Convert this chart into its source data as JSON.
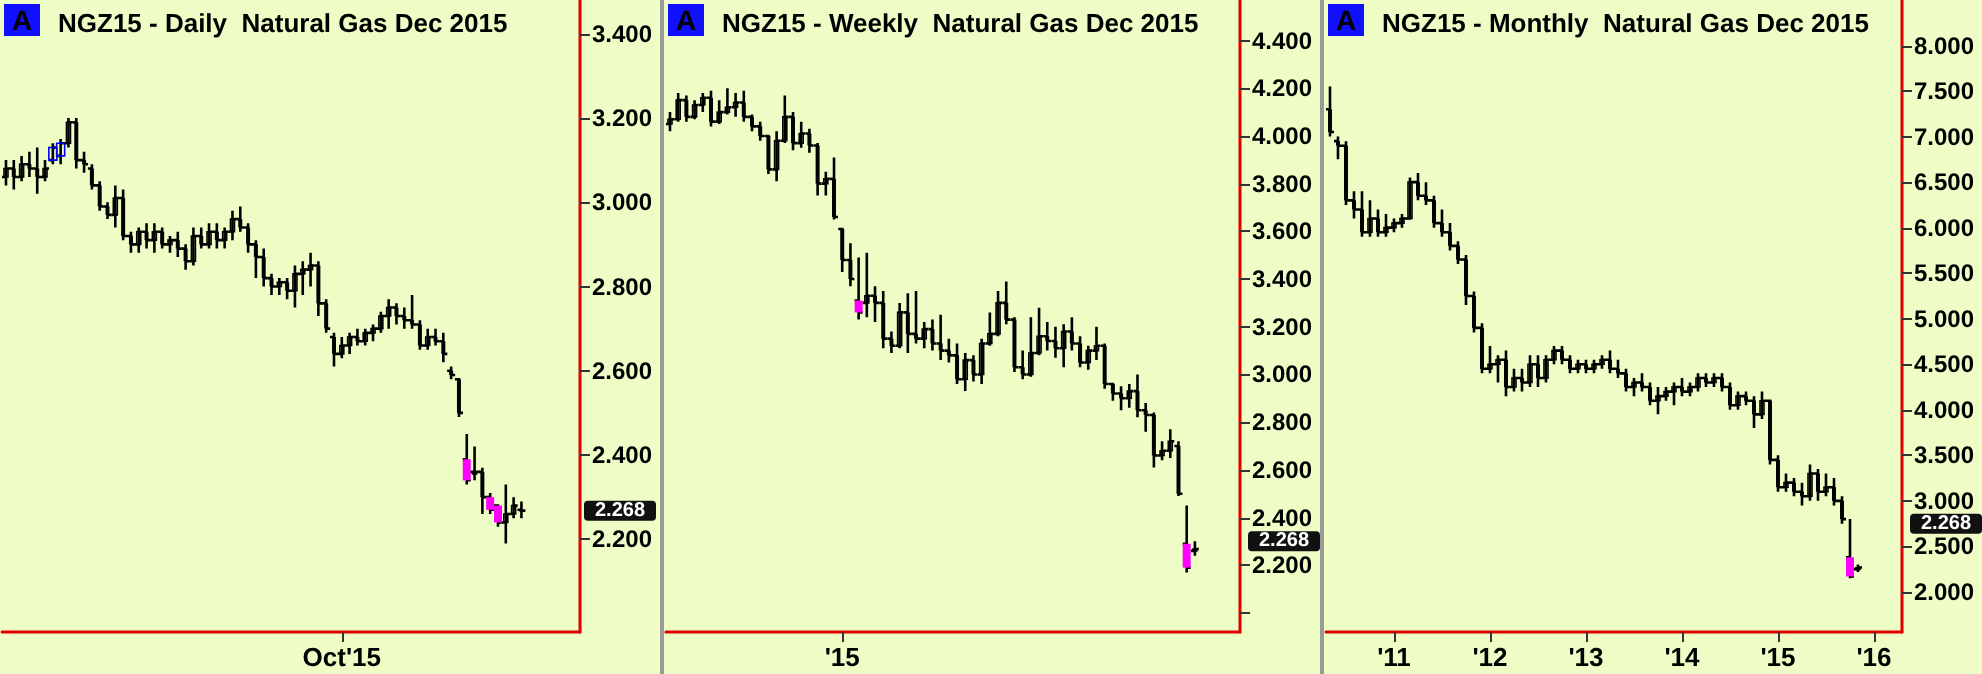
{
  "chart_data": [
    {
      "type": "candlestick",
      "title": "NGZ15 - Daily  Natural Gas Dec 2015",
      "annotations": [
        "A",
        "2.268"
      ],
      "color": "#000000",
      "grid": false,
      "categories": [
        null,
        null,
        null,
        null,
        null,
        null,
        null,
        null,
        null,
        null,
        null,
        null,
        null,
        null,
        null,
        null,
        null,
        null,
        null,
        null,
        null,
        null,
        null,
        null,
        null,
        null,
        null,
        null,
        null,
        null,
        null,
        null,
        null,
        null,
        null,
        null,
        null,
        null,
        null,
        null,
        null,
        null,
        null,
        "Oct'15",
        null,
        null,
        null,
        null,
        null,
        null,
        null,
        null,
        null,
        null,
        null,
        null,
        null,
        null,
        null,
        null,
        null,
        null,
        null,
        null,
        null,
        null,
        null,
        null,
        null,
        null,
        null,
        null,
        null,
        null
      ],
      "ylim": [
        1.98,
        3.48
      ],
      "yticks": [
        {
          "value": 2.2,
          "label": "2.200"
        },
        {
          "value": 2.4,
          "label": "2.400"
        },
        {
          "value": 2.6,
          "label": "2.600"
        },
        {
          "value": 2.8,
          "label": "2.800"
        },
        {
          "value": 3.0,
          "label": "3.000"
        },
        {
          "value": 3.2,
          "label": "3.200"
        },
        {
          "value": 3.4,
          "label": "3.400"
        }
      ],
      "ohlc": [
        [
          3.06,
          3.1,
          3.04,
          3.08
        ],
        [
          3.08,
          3.1,
          3.03,
          3.06
        ],
        [
          3.06,
          3.11,
          3.05,
          3.09
        ],
        [
          3.09,
          3.12,
          3.06,
          3.08
        ],
        [
          3.08,
          3.13,
          3.02,
          3.06
        ],
        [
          3.06,
          3.1,
          3.05,
          3.08
        ],
        [
          3.1,
          3.14,
          3.09,
          3.13
        ],
        [
          3.11,
          3.15,
          3.09,
          3.14
        ],
        [
          3.14,
          3.2,
          3.13,
          3.19
        ],
        [
          3.19,
          3.2,
          3.08,
          3.1
        ],
        [
          3.1,
          3.12,
          3.07,
          3.09
        ],
        [
          3.08,
          3.09,
          3.03,
          3.04
        ],
        [
          3.04,
          3.05,
          2.98,
          2.99
        ],
        [
          2.99,
          3.0,
          2.96,
          2.97
        ],
        [
          2.97,
          3.04,
          2.94,
          3.01
        ],
        [
          3.01,
          3.03,
          2.91,
          2.92
        ],
        [
          2.92,
          2.93,
          2.88,
          2.9
        ],
        [
          2.9,
          2.94,
          2.88,
          2.93
        ],
        [
          2.93,
          2.95,
          2.89,
          2.91
        ],
        [
          2.91,
          2.95,
          2.88,
          2.93
        ],
        [
          2.93,
          2.94,
          2.89,
          2.9
        ],
        [
          2.9,
          2.92,
          2.88,
          2.91
        ],
        [
          2.91,
          2.93,
          2.87,
          2.89
        ],
        [
          2.89,
          2.9,
          2.84,
          2.86
        ],
        [
          2.86,
          2.94,
          2.85,
          2.92
        ],
        [
          2.92,
          2.94,
          2.89,
          2.9
        ],
        [
          2.9,
          2.95,
          2.89,
          2.93
        ],
        [
          2.93,
          2.95,
          2.89,
          2.91
        ],
        [
          2.91,
          2.94,
          2.89,
          2.93
        ],
        [
          2.93,
          2.98,
          2.91,
          2.96
        ],
        [
          2.96,
          2.99,
          2.93,
          2.94
        ],
        [
          2.94,
          2.95,
          2.88,
          2.9
        ],
        [
          2.9,
          2.91,
          2.82,
          2.87
        ],
        [
          2.87,
          2.89,
          2.8,
          2.82
        ],
        [
          2.82,
          2.83,
          2.78,
          2.8
        ],
        [
          2.8,
          2.82,
          2.78,
          2.81
        ],
        [
          2.81,
          2.82,
          2.77,
          2.79
        ],
        [
          2.79,
          2.85,
          2.75,
          2.83
        ],
        [
          2.83,
          2.86,
          2.78,
          2.84
        ],
        [
          2.84,
          2.88,
          2.8,
          2.85
        ],
        [
          2.85,
          2.86,
          2.73,
          2.76
        ],
        [
          2.76,
          2.77,
          2.69,
          2.7
        ],
        [
          2.68,
          2.69,
          2.61,
          2.64
        ],
        [
          2.64,
          2.68,
          2.63,
          2.66
        ],
        [
          2.66,
          2.69,
          2.64,
          2.68
        ],
        [
          2.68,
          2.7,
          2.66,
          2.67
        ],
        [
          2.67,
          2.7,
          2.66,
          2.69
        ],
        [
          2.69,
          2.71,
          2.67,
          2.7
        ],
        [
          2.7,
          2.74,
          2.69,
          2.73
        ],
        [
          2.73,
          2.77,
          2.7,
          2.75
        ],
        [
          2.75,
          2.76,
          2.71,
          2.73
        ],
        [
          2.73,
          2.75,
          2.7,
          2.72
        ],
        [
          2.72,
          2.78,
          2.7,
          2.71
        ],
        [
          2.71,
          2.72,
          2.65,
          2.66
        ],
        [
          2.66,
          2.7,
          2.65,
          2.68
        ],
        [
          2.68,
          2.7,
          2.66,
          2.67
        ],
        [
          2.67,
          2.69,
          2.62,
          2.64
        ],
        [
          2.6,
          2.61,
          2.58,
          2.59
        ],
        [
          2.58,
          2.58,
          2.49,
          2.5
        ],
        [
          2.39,
          2.45,
          2.33,
          2.34
        ],
        [
          2.36,
          2.42,
          2.34,
          2.36
        ],
        [
          2.36,
          2.37,
          2.26,
          2.3
        ],
        [
          2.3,
          2.31,
          2.26,
          2.27
        ],
        [
          2.28,
          2.28,
          2.23,
          2.24
        ],
        [
          2.24,
          2.33,
          2.19,
          2.26
        ],
        [
          2.26,
          2.3,
          2.25,
          2.28
        ],
        [
          2.27,
          2.29,
          2.25,
          2.268
        ],
        null,
        null,
        null,
        null,
        null,
        null,
        null
      ],
      "colors": [
        "#000000",
        "#000000",
        "#000000",
        "#000000",
        "#000000",
        "#000000",
        "#0000ff",
        "#0000ff",
        "#000000",
        "#000000",
        "#000000",
        "#000000",
        "#000000",
        "#000000",
        "#000000",
        "#000000",
        "#000000",
        "#000000",
        "#000000",
        "#000000",
        "#000000",
        "#000000",
        "#000000",
        "#000000",
        "#000000",
        "#000000",
        "#000000",
        "#000000",
        "#000000",
        "#000000",
        "#000000",
        "#000000",
        "#000000",
        "#000000",
        "#000000",
        "#000000",
        "#000000",
        "#000000",
        "#000000",
        "#000000",
        "#000000",
        "#000000",
        "#000000",
        "#000000",
        "#000000",
        "#000000",
        "#000000",
        "#000000",
        "#000000",
        "#000000",
        "#000000",
        "#000000",
        "#000000",
        "#000000",
        "#000000",
        "#000000",
        "#000000",
        "#000000",
        "#000000",
        "#ff00ff",
        "#000000",
        "#000000",
        "#ff00ff",
        "#ff00ff",
        "#000000",
        "#000000",
        "#000000",
        null,
        null,
        null,
        null,
        null,
        null,
        null
      ]
    },
    {
      "type": "candlestick",
      "title": "NGZ15 - Weekly  Natural Gas Dec 2015",
      "annotations": [
        "A",
        "2.268"
      ],
      "color": "#000000",
      "grid": false,
      "categories": [
        null,
        null,
        null,
        null,
        null,
        null,
        null,
        null,
        null,
        null,
        null,
        null,
        null,
        null,
        null,
        null,
        null,
        null,
        null,
        null,
        null,
        "'15",
        null,
        null,
        null,
        null,
        null,
        null,
        null,
        null,
        null,
        null,
        null,
        null,
        null,
        null,
        null,
        null,
        null,
        null,
        null,
        null,
        null,
        null,
        null,
        null,
        null,
        null,
        null,
        null,
        null,
        null,
        null,
        null,
        null,
        null,
        null,
        null,
        null,
        null,
        null,
        null,
        null,
        null,
        null,
        null,
        null,
        null,
        null,
        null
      ],
      "ylim": [
        1.92,
        4.57
      ],
      "yticks": [
        {
          "value": 2.0,
          "label": null
        },
        {
          "value": 2.2,
          "label": "2.200"
        },
        {
          "value": 2.4,
          "label": "2.400"
        },
        {
          "value": 2.6,
          "label": "2.600"
        },
        {
          "value": 2.8,
          "label": "2.800"
        },
        {
          "value": 3.0,
          "label": "3.000"
        },
        {
          "value": 3.2,
          "label": "3.200"
        },
        {
          "value": 3.4,
          "label": "3.400"
        },
        {
          "value": 3.6,
          "label": "3.600"
        },
        {
          "value": 3.8,
          "label": "3.800"
        },
        {
          "value": 4.0,
          "label": "4.000"
        },
        {
          "value": 4.2,
          "label": "4.200"
        },
        {
          "value": 4.4,
          "label": "4.400"
        }
      ],
      "ohlc": [
        [
          4.05,
          4.1,
          4.02,
          4.07
        ],
        [
          4.07,
          4.18,
          4.06,
          4.15
        ],
        [
          4.15,
          4.17,
          4.06,
          4.08
        ],
        [
          4.08,
          4.15,
          4.07,
          4.13
        ],
        [
          4.13,
          4.18,
          4.1,
          4.16
        ],
        [
          4.16,
          4.19,
          4.04,
          4.06
        ],
        [
          4.06,
          4.15,
          4.05,
          4.1
        ],
        [
          4.1,
          4.2,
          4.09,
          4.12
        ],
        [
          4.12,
          4.18,
          4.08,
          4.14
        ],
        [
          4.14,
          4.19,
          4.06,
          4.08
        ],
        [
          4.08,
          4.09,
          4.02,
          4.04
        ],
        [
          4.04,
          4.06,
          3.98,
          4.0
        ],
        [
          4.0,
          4.0,
          3.84,
          3.86
        ],
        [
          3.86,
          4.02,
          3.81,
          3.98
        ],
        [
          3.98,
          4.17,
          3.97,
          4.08
        ],
        [
          4.08,
          4.1,
          3.94,
          3.97
        ],
        [
          3.97,
          4.06,
          3.95,
          4.01
        ],
        [
          4.01,
          4.03,
          3.93,
          3.96
        ],
        [
          3.96,
          3.97,
          3.75,
          3.8
        ],
        [
          3.8,
          3.85,
          3.75,
          3.82
        ],
        [
          3.82,
          3.91,
          3.65,
          3.66
        ],
        [
          3.61,
          3.61,
          3.43,
          3.48
        ],
        [
          3.48,
          3.55,
          3.37,
          3.4
        ],
        [
          3.31,
          3.49,
          3.23,
          3.26
        ],
        [
          3.3,
          3.51,
          3.24,
          3.33
        ],
        [
          3.33,
          3.37,
          3.22,
          3.3
        ],
        [
          3.3,
          3.35,
          3.11,
          3.15
        ],
        [
          3.15,
          3.18,
          3.09,
          3.12
        ],
        [
          3.12,
          3.3,
          3.11,
          3.26
        ],
        [
          3.26,
          3.34,
          3.09,
          3.17
        ],
        [
          3.17,
          3.35,
          3.13,
          3.15
        ],
        [
          3.15,
          3.22,
          3.11,
          3.19
        ],
        [
          3.19,
          3.23,
          3.1,
          3.13
        ],
        [
          3.13,
          3.25,
          3.06,
          3.1
        ],
        [
          3.1,
          3.15,
          3.05,
          3.08
        ],
        [
          3.08,
          3.13,
          2.96,
          2.98
        ],
        [
          2.98,
          3.09,
          2.93,
          3.06
        ],
        [
          3.06,
          3.08,
          2.97,
          3.0
        ],
        [
          3.0,
          3.15,
          2.96,
          3.13
        ],
        [
          3.13,
          3.26,
          3.12,
          3.17
        ],
        [
          3.17,
          3.35,
          3.16,
          3.3
        ],
        [
          3.3,
          3.39,
          3.21,
          3.23
        ],
        [
          3.23,
          3.24,
          3.01,
          3.03
        ],
        [
          3.03,
          3.1,
          2.98,
          3.0
        ],
        [
          3.0,
          3.24,
          2.99,
          3.09
        ],
        [
          3.09,
          3.28,
          3.08,
          3.16
        ],
        [
          3.16,
          3.22,
          3.1,
          3.14
        ],
        [
          3.14,
          3.2,
          3.07,
          3.11
        ],
        [
          3.11,
          3.21,
          3.03,
          3.18
        ],
        [
          3.18,
          3.24,
          3.1,
          3.13
        ],
        [
          3.13,
          3.16,
          3.03,
          3.05
        ],
        [
          3.05,
          3.12,
          3.02,
          3.1
        ],
        [
          3.1,
          3.2,
          3.06,
          3.12
        ],
        [
          3.12,
          3.13,
          2.94,
          2.96
        ],
        [
          2.96,
          2.96,
          2.89,
          2.92
        ],
        [
          2.92,
          2.95,
          2.85,
          2.9
        ],
        [
          2.9,
          2.96,
          2.86,
          2.93
        ],
        [
          2.93,
          3.0,
          2.82,
          2.85
        ],
        [
          2.85,
          2.88,
          2.76,
          2.83
        ],
        [
          2.83,
          2.84,
          2.61,
          2.66
        ],
        [
          2.66,
          2.72,
          2.64,
          2.68
        ],
        [
          2.68,
          2.77,
          2.65,
          2.72
        ],
        [
          2.7,
          2.72,
          2.49,
          2.5
        ],
        [
          2.29,
          2.45,
          2.17,
          2.19
        ],
        [
          2.26,
          2.3,
          2.24,
          2.268
        ],
        null,
        null,
        null,
        null,
        null
      ],
      "colors": [
        "#000000",
        "#000000",
        "#000000",
        "#000000",
        "#000000",
        "#000000",
        "#000000",
        "#000000",
        "#000000",
        "#000000",
        "#000000",
        "#000000",
        "#000000",
        "#000000",
        "#000000",
        "#000000",
        "#000000",
        "#000000",
        "#000000",
        "#000000",
        "#000000",
        "#000000",
        "#000000",
        "#ff00ff",
        "#000000",
        "#000000",
        "#000000",
        "#000000",
        "#000000",
        "#000000",
        "#000000",
        "#000000",
        "#000000",
        "#000000",
        "#000000",
        "#000000",
        "#000000",
        "#000000",
        "#000000",
        "#000000",
        "#000000",
        "#000000",
        "#000000",
        "#000000",
        "#000000",
        "#000000",
        "#000000",
        "#000000",
        "#000000",
        "#000000",
        "#000000",
        "#000000",
        "#000000",
        "#000000",
        "#000000",
        "#000000",
        "#000000",
        "#000000",
        "#000000",
        "#000000",
        "#000000",
        "#000000",
        "#000000",
        "#ff00ff",
        "#000000",
        null,
        null,
        null,
        null,
        null
      ]
    },
    {
      "type": "candlestick",
      "title": "NGZ15 - Monthly  Natural Gas Dec 2015",
      "annotations": [
        "A",
        "2.268"
      ],
      "color": "#000000",
      "grid": false,
      "categories": [
        null,
        null,
        null,
        null,
        null,
        null,
        null,
        null,
        "'11",
        null,
        null,
        null,
        null,
        null,
        null,
        null,
        null,
        null,
        null,
        null,
        "'12",
        null,
        null,
        null,
        null,
        null,
        null,
        null,
        null,
        null,
        null,
        null,
        "'13",
        null,
        null,
        null,
        null,
        null,
        null,
        null,
        null,
        null,
        null,
        null,
        "'14",
        null,
        null,
        null,
        null,
        null,
        null,
        null,
        null,
        null,
        null,
        null,
        "'15",
        null,
        null,
        null,
        null,
        null,
        null,
        null,
        null,
        null,
        null,
        null,
        "'16",
        null,
        null,
        null
      ],
      "ylim": [
        1.56,
        8.5
      ],
      "yticks": [
        {
          "value": 2.0,
          "label": "2.000"
        },
        {
          "value": 2.5,
          "label": "2.500"
        },
        {
          "value": 3.0,
          "label": "3.000"
        },
        {
          "value": 3.5,
          "label": "3.500"
        },
        {
          "value": 4.0,
          "label": "4.000"
        },
        {
          "value": 4.5,
          "label": "4.500"
        },
        {
          "value": 5.0,
          "label": "5.000"
        },
        {
          "value": 5.5,
          "label": "5.500"
        },
        {
          "value": 6.0,
          "label": "6.000"
        },
        {
          "value": 6.5,
          "label": "6.500"
        },
        {
          "value": 7.0,
          "label": "7.000"
        },
        {
          "value": 7.5,
          "label": "7.500"
        },
        {
          "value": 8.0,
          "label": "8.000"
        }
      ],
      "ohlc": [
        [
          7.3,
          7.55,
          7.0,
          7.05
        ],
        [
          6.95,
          7.0,
          6.75,
          6.9
        ],
        [
          6.9,
          6.95,
          6.25,
          6.3
        ],
        [
          6.3,
          6.4,
          6.1,
          6.2
        ],
        [
          6.2,
          6.4,
          5.9,
          5.95
        ],
        [
          5.95,
          6.3,
          5.9,
          6.1
        ],
        [
          6.1,
          6.2,
          5.9,
          5.95
        ],
        [
          5.95,
          6.15,
          5.9,
          6.0
        ],
        [
          6.0,
          6.1,
          5.95,
          6.05
        ],
        [
          6.05,
          6.15,
          6.0,
          6.1
        ],
        [
          6.1,
          6.55,
          6.1,
          6.5
        ],
        [
          6.5,
          6.6,
          6.3,
          6.35
        ],
        [
          6.35,
          6.5,
          6.25,
          6.3
        ],
        [
          6.3,
          6.35,
          6.0,
          6.05
        ],
        [
          6.05,
          6.2,
          5.9,
          5.95
        ],
        [
          5.95,
          6.05,
          5.75,
          5.8
        ],
        [
          5.8,
          5.85,
          5.6,
          5.65
        ],
        [
          5.65,
          5.7,
          5.15,
          5.25
        ],
        [
          5.25,
          5.3,
          4.85,
          4.9
        ],
        [
          4.9,
          4.95,
          4.4,
          4.45
        ],
        [
          4.45,
          4.7,
          4.4,
          4.5
        ],
        [
          4.5,
          4.6,
          4.3,
          4.55
        ],
        [
          4.55,
          4.65,
          4.15,
          4.25
        ],
        [
          4.25,
          4.45,
          4.2,
          4.35
        ],
        [
          4.35,
          4.45,
          4.2,
          4.3
        ],
        [
          4.3,
          4.6,
          4.25,
          4.5
        ],
        [
          4.5,
          4.6,
          4.25,
          4.35
        ],
        [
          4.35,
          4.6,
          4.3,
          4.55
        ],
        [
          4.55,
          4.7,
          4.5,
          4.65
        ],
        [
          4.65,
          4.7,
          4.5,
          4.55
        ],
        [
          4.55,
          4.6,
          4.4,
          4.45
        ],
        [
          4.45,
          4.55,
          4.4,
          4.5
        ],
        [
          4.5,
          4.55,
          4.4,
          4.45
        ],
        [
          4.45,
          4.55,
          4.4,
          4.5
        ],
        [
          4.5,
          4.6,
          4.45,
          4.55
        ],
        [
          4.55,
          4.65,
          4.4,
          4.45
        ],
        [
          4.45,
          4.55,
          4.35,
          4.4
        ],
        [
          4.4,
          4.45,
          4.2,
          4.25
        ],
        [
          4.25,
          4.35,
          4.15,
          4.3
        ],
        [
          4.3,
          4.4,
          4.2,
          4.25
        ],
        [
          4.25,
          4.3,
          4.05,
          4.1
        ],
        [
          4.1,
          4.25,
          3.95,
          4.15
        ],
        [
          4.15,
          4.25,
          4.1,
          4.2
        ],
        [
          4.2,
          4.3,
          4.05,
          4.25
        ],
        [
          4.25,
          4.35,
          4.15,
          4.2
        ],
        [
          4.2,
          4.3,
          4.15,
          4.25
        ],
        [
          4.25,
          4.4,
          4.2,
          4.35
        ],
        [
          4.35,
          4.4,
          4.25,
          4.3
        ],
        [
          4.3,
          4.4,
          4.25,
          4.35
        ],
        [
          4.35,
          4.4,
          4.2,
          4.25
        ],
        [
          4.25,
          4.3,
          4.0,
          4.05
        ],
        [
          4.05,
          4.2,
          4.0,
          4.15
        ],
        [
          4.15,
          4.2,
          4.05,
          4.1
        ],
        [
          4.1,
          4.15,
          3.8,
          3.95
        ],
        [
          3.95,
          4.2,
          3.9,
          4.1
        ],
        [
          4.1,
          4.1,
          3.4,
          3.45
        ],
        [
          3.45,
          3.5,
          3.1,
          3.15
        ],
        [
          3.15,
          3.3,
          3.1,
          3.2
        ],
        [
          3.2,
          3.25,
          3.05,
          3.1
        ],
        [
          3.1,
          3.2,
          2.95,
          3.05
        ],
        [
          3.05,
          3.4,
          3.0,
          3.3
        ],
        [
          3.3,
          3.35,
          3.0,
          3.1
        ],
        [
          3.1,
          3.3,
          3.05,
          3.15
        ],
        [
          3.15,
          3.25,
          2.95,
          3.0
        ],
        [
          3.0,
          3.05,
          2.75,
          2.8
        ],
        [
          2.38,
          2.8,
          2.15,
          2.17
        ],
        [
          2.25,
          2.3,
          2.22,
          2.268
        ],
        null,
        null,
        null,
        null,
        null
      ],
      "colors": [
        "#000000",
        "#000000",
        "#000000",
        "#000000",
        "#000000",
        "#000000",
        "#000000",
        "#000000",
        "#000000",
        "#000000",
        "#000000",
        "#000000",
        "#000000",
        "#000000",
        "#000000",
        "#000000",
        "#000000",
        "#000000",
        "#000000",
        "#000000",
        "#000000",
        "#000000",
        "#000000",
        "#000000",
        "#000000",
        "#000000",
        "#000000",
        "#000000",
        "#000000",
        "#000000",
        "#000000",
        "#000000",
        "#000000",
        "#000000",
        "#000000",
        "#000000",
        "#000000",
        "#000000",
        "#000000",
        "#000000",
        "#000000",
        "#000000",
        "#000000",
        "#000000",
        "#000000",
        "#000000",
        "#000000",
        "#000000",
        "#000000",
        "#000000",
        "#000000",
        "#000000",
        "#000000",
        "#000000",
        "#000000",
        "#000000",
        "#000000",
        "#000000",
        "#000000",
        "#000000",
        "#000000",
        "#000000",
        "#000000",
        "#000000",
        "#000000",
        "#ff00ff",
        "#000000",
        null,
        null,
        null,
        null,
        null
      ]
    }
  ]
}
